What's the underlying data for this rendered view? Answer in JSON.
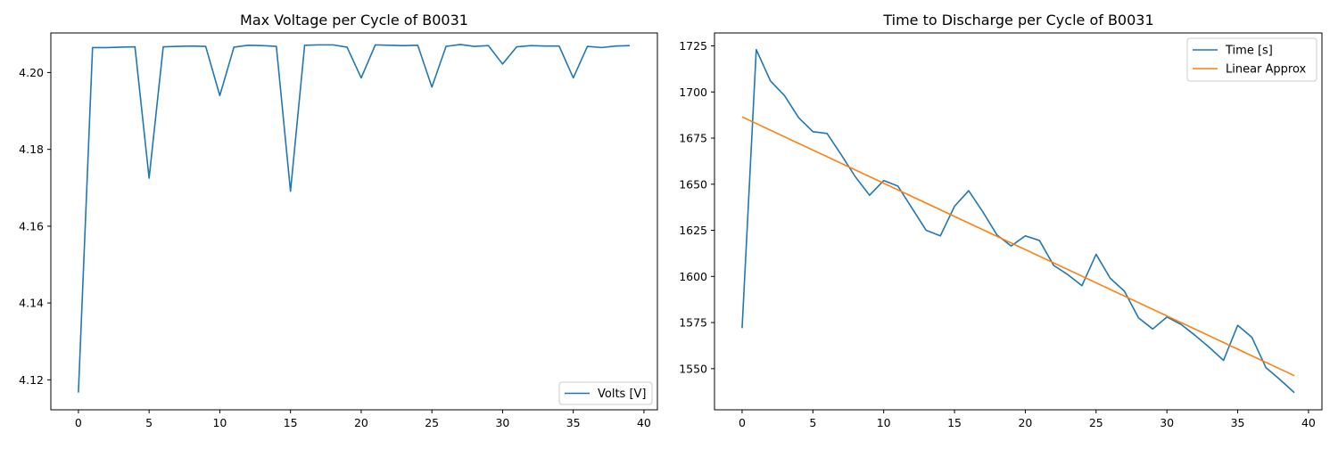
{
  "chart_data": [
    {
      "type": "line",
      "title": "Max Voltage per Cycle of B0031",
      "xlabel": "",
      "ylabel": "",
      "xlim": [
        -1.95,
        40.95
      ],
      "ylim": [
        4.1122,
        4.2103
      ],
      "xticks": [
        0,
        5,
        10,
        15,
        20,
        25,
        30,
        35,
        40
      ],
      "yticks": [
        4.12,
        4.14,
        4.16,
        4.18,
        4.2
      ],
      "ytick_labels": [
        "4.12",
        "4.14",
        "4.16",
        "4.18",
        "4.20"
      ],
      "grid": false,
      "legend_position": "lower right",
      "x": [
        0,
        1,
        2,
        3,
        4,
        5,
        6,
        7,
        8,
        9,
        10,
        11,
        12,
        13,
        14,
        15,
        16,
        17,
        18,
        19,
        20,
        21,
        22,
        23,
        24,
        25,
        26,
        27,
        28,
        29,
        30,
        31,
        32,
        33,
        34,
        35,
        36,
        37,
        38,
        39
      ],
      "series": [
        {
          "name": "Volts [V]",
          "color": "#1f77b4",
          "values": [
            4.1167,
            4.2065,
            4.2065,
            4.2066,
            4.2067,
            4.1725,
            4.2067,
            4.2068,
            4.2069,
            4.2068,
            4.194,
            4.2066,
            4.2071,
            4.207,
            4.2068,
            4.1691,
            4.2071,
            4.2072,
            4.2072,
            4.2066,
            4.1986,
            4.2072,
            4.2071,
            4.207,
            4.2071,
            4.1962,
            4.2068,
            4.2073,
            4.2068,
            4.207,
            4.2022,
            4.2067,
            4.207,
            4.2069,
            4.2069,
            4.1986,
            4.2068,
            4.2065,
            4.2069,
            4.207
          ]
        }
      ]
    },
    {
      "type": "line",
      "title": "Time to Discharge per Cycle of B0031",
      "xlabel": "",
      "ylabel": "",
      "xlim": [
        -1.95,
        40.95
      ],
      "ylim": [
        1527.7,
        1732
      ],
      "xticks": [
        0,
        5,
        10,
        15,
        20,
        25,
        30,
        35,
        40
      ],
      "yticks": [
        1550,
        1575,
        1600,
        1625,
        1650,
        1675,
        1700,
        1725
      ],
      "ytick_labels": [
        "1550",
        "1575",
        "1600",
        "1625",
        "1650",
        "1675",
        "1700",
        "1725"
      ],
      "grid": false,
      "legend_position": "upper right",
      "x": [
        0,
        1,
        2,
        3,
        4,
        5,
        6,
        7,
        8,
        9,
        10,
        11,
        12,
        13,
        14,
        15,
        16,
        17,
        18,
        19,
        20,
        21,
        22,
        23,
        24,
        25,
        26,
        27,
        28,
        29,
        30,
        31,
        32,
        33,
        34,
        35,
        36,
        37,
        38,
        39
      ],
      "series": [
        {
          "name": "Time [s]",
          "color": "#1f77b4",
          "values": [
            1572,
            1723,
            1706,
            1698,
            1686,
            1678.5,
            1677.5,
            1666,
            1654,
            1644,
            1652,
            1649,
            1637,
            1625,
            1622,
            1638,
            1646.5,
            1635,
            1622.5,
            1616.5,
            1622,
            1619.5,
            1606,
            1601,
            1595,
            1612,
            1599,
            1592,
            1577.5,
            1571.5,
            1578,
            1574,
            1568,
            1561.5,
            1554.5,
            1573.5,
            1567,
            1550.5,
            1544,
            1537
          ]
        },
        {
          "name": "Linear Approx",
          "color": "#ff7f0e",
          "values": [
            1686.5,
            1546.2
          ],
          "x": [
            0,
            39
          ]
        }
      ]
    }
  ]
}
